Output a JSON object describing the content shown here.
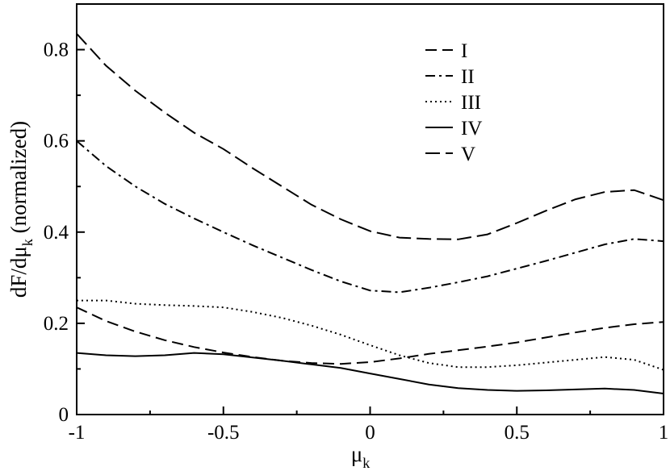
{
  "chart_data": {
    "type": "line",
    "title": "",
    "xlabel": "μ",
    "xlabel_sub": "k",
    "ylabel": "dF/dμ",
    "ylabel_sub": "k",
    "ylabel_suffix": " (normalized)",
    "xlim": [
      -1,
      1
    ],
    "ylim": [
      0,
      0.9
    ],
    "xticks": [
      -1,
      -0.5,
      0,
      0.5,
      1
    ],
    "xtick_labels": [
      "-1",
      "-0.5",
      "0",
      "0.5",
      "1"
    ],
    "yticks": [
      0,
      0.2,
      0.4,
      0.6,
      0.8
    ],
    "ytick_labels": [
      "0",
      "0.2",
      "0.4",
      "0.6",
      "0.8"
    ],
    "grid": false,
    "legend_position": "top-right",
    "series": [
      {
        "name": "I",
        "style": "dashed",
        "color": "#000000",
        "x": [
          -1.0,
          -0.9,
          -0.8,
          -0.7,
          -0.6,
          -0.5,
          -0.4,
          -0.3,
          -0.2,
          -0.1,
          0.0,
          0.1,
          0.2,
          0.3,
          0.4,
          0.5,
          0.6,
          0.7,
          0.8,
          0.9,
          1.0
        ],
        "y": [
          0.235,
          0.205,
          0.182,
          0.163,
          0.148,
          0.136,
          0.126,
          0.118,
          0.113,
          0.111,
          0.115,
          0.123,
          0.133,
          0.141,
          0.149,
          0.158,
          0.169,
          0.18,
          0.19,
          0.198,
          0.203
        ]
      },
      {
        "name": "II",
        "style": "dashdot",
        "color": "#000000",
        "x": [
          -1.0,
          -0.9,
          -0.8,
          -0.7,
          -0.6,
          -0.5,
          -0.4,
          -0.3,
          -0.2,
          -0.1,
          0.0,
          0.1,
          0.2,
          0.3,
          0.4,
          0.5,
          0.6,
          0.7,
          0.8,
          0.9,
          1.0
        ],
        "y": [
          0.6,
          0.545,
          0.5,
          0.462,
          0.43,
          0.4,
          0.371,
          0.344,
          0.317,
          0.292,
          0.272,
          0.268,
          0.278,
          0.29,
          0.303,
          0.32,
          0.337,
          0.355,
          0.373,
          0.385,
          0.38
        ]
      },
      {
        "name": "III",
        "style": "dotted",
        "color": "#000000",
        "x": [
          -1.0,
          -0.9,
          -0.8,
          -0.7,
          -0.6,
          -0.5,
          -0.4,
          -0.3,
          -0.2,
          -0.1,
          0.0,
          0.1,
          0.2,
          0.3,
          0.4,
          0.5,
          0.6,
          0.7,
          0.8,
          0.9,
          1.0
        ],
        "y": [
          0.25,
          0.25,
          0.243,
          0.24,
          0.238,
          0.235,
          0.225,
          0.212,
          0.195,
          0.175,
          0.152,
          0.13,
          0.113,
          0.104,
          0.104,
          0.108,
          0.114,
          0.12,
          0.126,
          0.12,
          0.098
        ]
      },
      {
        "name": "IV",
        "style": "solid",
        "color": "#000000",
        "x": [
          -1.0,
          -0.9,
          -0.8,
          -0.7,
          -0.6,
          -0.5,
          -0.4,
          -0.3,
          -0.2,
          -0.1,
          0.0,
          0.1,
          0.2,
          0.3,
          0.4,
          0.5,
          0.6,
          0.7,
          0.8,
          0.9,
          1.0
        ],
        "y": [
          0.135,
          0.13,
          0.128,
          0.13,
          0.135,
          0.132,
          0.125,
          0.118,
          0.11,
          0.102,
          0.09,
          0.078,
          0.066,
          0.058,
          0.054,
          0.052,
          0.053,
          0.055,
          0.057,
          0.054,
          0.046
        ]
      },
      {
        "name": "V",
        "style": "longdash",
        "color": "#000000",
        "x": [
          -1.0,
          -0.9,
          -0.8,
          -0.7,
          -0.6,
          -0.5,
          -0.4,
          -0.3,
          -0.2,
          -0.1,
          0.0,
          0.1,
          0.2,
          0.3,
          0.4,
          0.5,
          0.6,
          0.7,
          0.8,
          0.9,
          1.0
        ],
        "y": [
          0.835,
          0.765,
          0.71,
          0.662,
          0.618,
          0.582,
          0.54,
          0.5,
          0.46,
          0.428,
          0.402,
          0.388,
          0.385,
          0.384,
          0.395,
          0.42,
          0.447,
          0.472,
          0.488,
          0.492,
          0.47
        ]
      }
    ]
  }
}
